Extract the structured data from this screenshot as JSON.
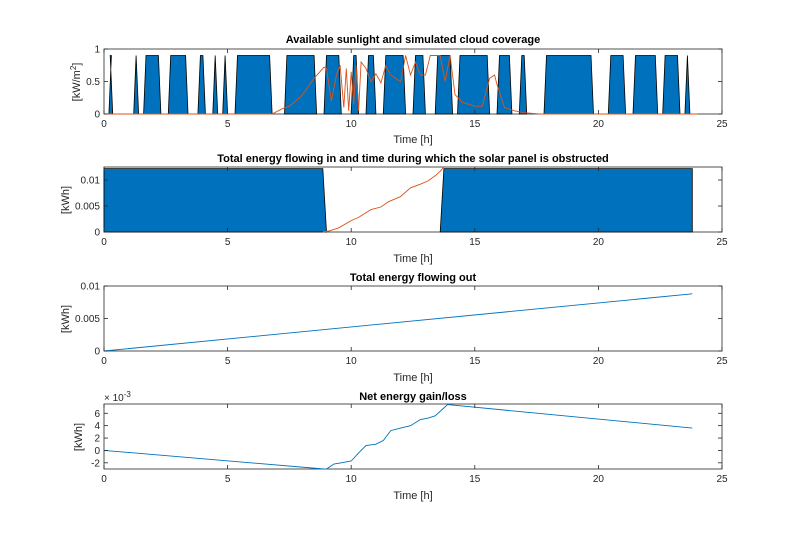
{
  "colors": {
    "fill_blue": "#0072BD",
    "line_blue": "#0072BD",
    "line_orange": "#D95319",
    "axis": "#262626"
  },
  "chart_data": [
    {
      "type": "area",
      "title": "Available sunlight and simulated cloud coverage",
      "xlabel": "Time [h]",
      "ylabel": "[kW/m",
      "ylabel_sup": "2",
      "ylabel_end": "]",
      "xlim": [
        0,
        25
      ],
      "ylim": [
        0,
        1
      ],
      "xticks": [
        "0",
        "5",
        "10",
        "15",
        "20",
        "25"
      ],
      "yticks": [
        "0",
        "0.5",
        "1"
      ],
      "sunlight_fill": {
        "level": 0.9,
        "intervals": [
          [
            0.2,
            0.35
          ],
          [
            1.2,
            1.4
          ],
          [
            1.6,
            2.3
          ],
          [
            2.6,
            3.4
          ],
          [
            3.8,
            4.1
          ],
          [
            4.4,
            4.6
          ],
          [
            4.8,
            5.0
          ],
          [
            5.3,
            6.8
          ],
          [
            7.3,
            8.6
          ],
          [
            8.9,
            9.6
          ],
          [
            10.0,
            10.3
          ],
          [
            10.6,
            11.0
          ],
          [
            11.3,
            12.2
          ],
          [
            12.5,
            13.0
          ],
          [
            13.4,
            14.1
          ],
          [
            14.3,
            15.6
          ],
          [
            15.9,
            16.5
          ],
          [
            16.8,
            17.1
          ],
          [
            17.8,
            19.8
          ],
          [
            20.4,
            21.1
          ],
          [
            21.4,
            22.4
          ],
          [
            22.6,
            23.3
          ],
          [
            23.5,
            23.7
          ]
        ]
      },
      "series": [
        {
          "kind": "line",
          "x": [
            0,
            6.8,
            7.2,
            7.5,
            8.0,
            8.5,
            8.9,
            9.0,
            9.2,
            9.4,
            9.55,
            9.7,
            9.8,
            9.9,
            10.0,
            10.1,
            10.2,
            10.3,
            10.4,
            10.6,
            10.8,
            11.0,
            11.2,
            11.4,
            11.6,
            11.8,
            12.0,
            12.2,
            12.4,
            12.6,
            12.8,
            13.0,
            13.2,
            13.4,
            13.6,
            13.8,
            14.0,
            14.2,
            14.5,
            15.0,
            15.3,
            15.6,
            15.8,
            15.9,
            16.2,
            16.6,
            17.0,
            17.3,
            17.6,
            24
          ],
          "y": [
            0,
            0,
            0.08,
            0.12,
            0.28,
            0.55,
            0.72,
            0.7,
            0.2,
            0.6,
            0.75,
            0.1,
            0.7,
            0.05,
            0.65,
            0.15,
            0.75,
            0.05,
            0.8,
            0.7,
            0.5,
            0.62,
            0.48,
            0.75,
            0.6,
            0.55,
            0.5,
            0.9,
            0.6,
            0.8,
            0.6,
            0.6,
            0.9,
            0.9,
            0.9,
            0.5,
            0.9,
            0.3,
            0.18,
            0.12,
            0.12,
            0.55,
            0.6,
            0.45,
            0.1,
            0.05,
            0.02,
            0.01,
            0,
            0
          ]
        }
      ]
    },
    {
      "type": "area",
      "title": "Total energy flowing in and time during which the solar panel is obstructed",
      "xlabel": "Time [h]",
      "ylabel": "[kWh]",
      "xlim": [
        0,
        25
      ],
      "ylim": [
        0,
        0.0125
      ],
      "xticks": [
        "0",
        "5",
        "10",
        "15",
        "20",
        "25"
      ],
      "yticks": [
        "0",
        "0.005",
        "0.01"
      ],
      "obstruction_fill": {
        "level": 0.0122,
        "intervals": [
          [
            0,
            8.85,
            9.0
          ],
          [
            13.6,
            13.75,
            23.8
          ]
        ]
      },
      "series": [
        {
          "kind": "line",
          "x": [
            8.85,
            9.1,
            9.5,
            10.0,
            10.3,
            10.8,
            11.2,
            11.5,
            12.0,
            12.4,
            12.8,
            13.1,
            13.4,
            13.6,
            13.75
          ],
          "y": [
            0,
            0.0002,
            0.0008,
            0.0022,
            0.0028,
            0.0043,
            0.0048,
            0.0058,
            0.0068,
            0.0085,
            0.0092,
            0.0098,
            0.0108,
            0.0117,
            0.0125
          ]
        }
      ]
    },
    {
      "type": "line",
      "title": "Total energy flowing out",
      "xlabel": "Time [h]",
      "ylabel": "[kWh]",
      "xlim": [
        0,
        25
      ],
      "ylim": [
        0,
        0.01
      ],
      "xticks": [
        "0",
        "5",
        "10",
        "15",
        "20",
        "25"
      ],
      "yticks": [
        "0",
        "0.005",
        "0.01"
      ],
      "series": [
        {
          "kind": "line",
          "x": [
            0,
            23.8
          ],
          "y": [
            0,
            0.0088
          ]
        }
      ]
    },
    {
      "type": "line",
      "title": "Net energy gain/loss",
      "xlabel": "Time [h]",
      "ylabel": "[kWh]",
      "exponent_label": "× 10",
      "exponent_power": "-3",
      "xlim": [
        0,
        25
      ],
      "ylim": [
        -3,
        7.5
      ],
      "xticks": [
        "0",
        "5",
        "10",
        "15",
        "20",
        "25"
      ],
      "yticks": [
        "-2",
        "0",
        "2",
        "4",
        "6"
      ],
      "series": [
        {
          "kind": "line",
          "x": [
            0,
            8.9,
            9.0,
            9.3,
            9.6,
            10.0,
            10.3,
            10.6,
            11.0,
            11.3,
            11.6,
            12.0,
            12.4,
            12.8,
            13.1,
            13.4,
            13.7,
            13.9,
            23.8
          ],
          "y": [
            0,
            -3.0,
            -3.0,
            -2.2,
            -2.0,
            -1.7,
            -0.4,
            0.8,
            1.0,
            1.6,
            3.2,
            3.6,
            4.0,
            5.0,
            5.2,
            5.6,
            6.7,
            7.4,
            3.6
          ]
        }
      ]
    }
  ]
}
